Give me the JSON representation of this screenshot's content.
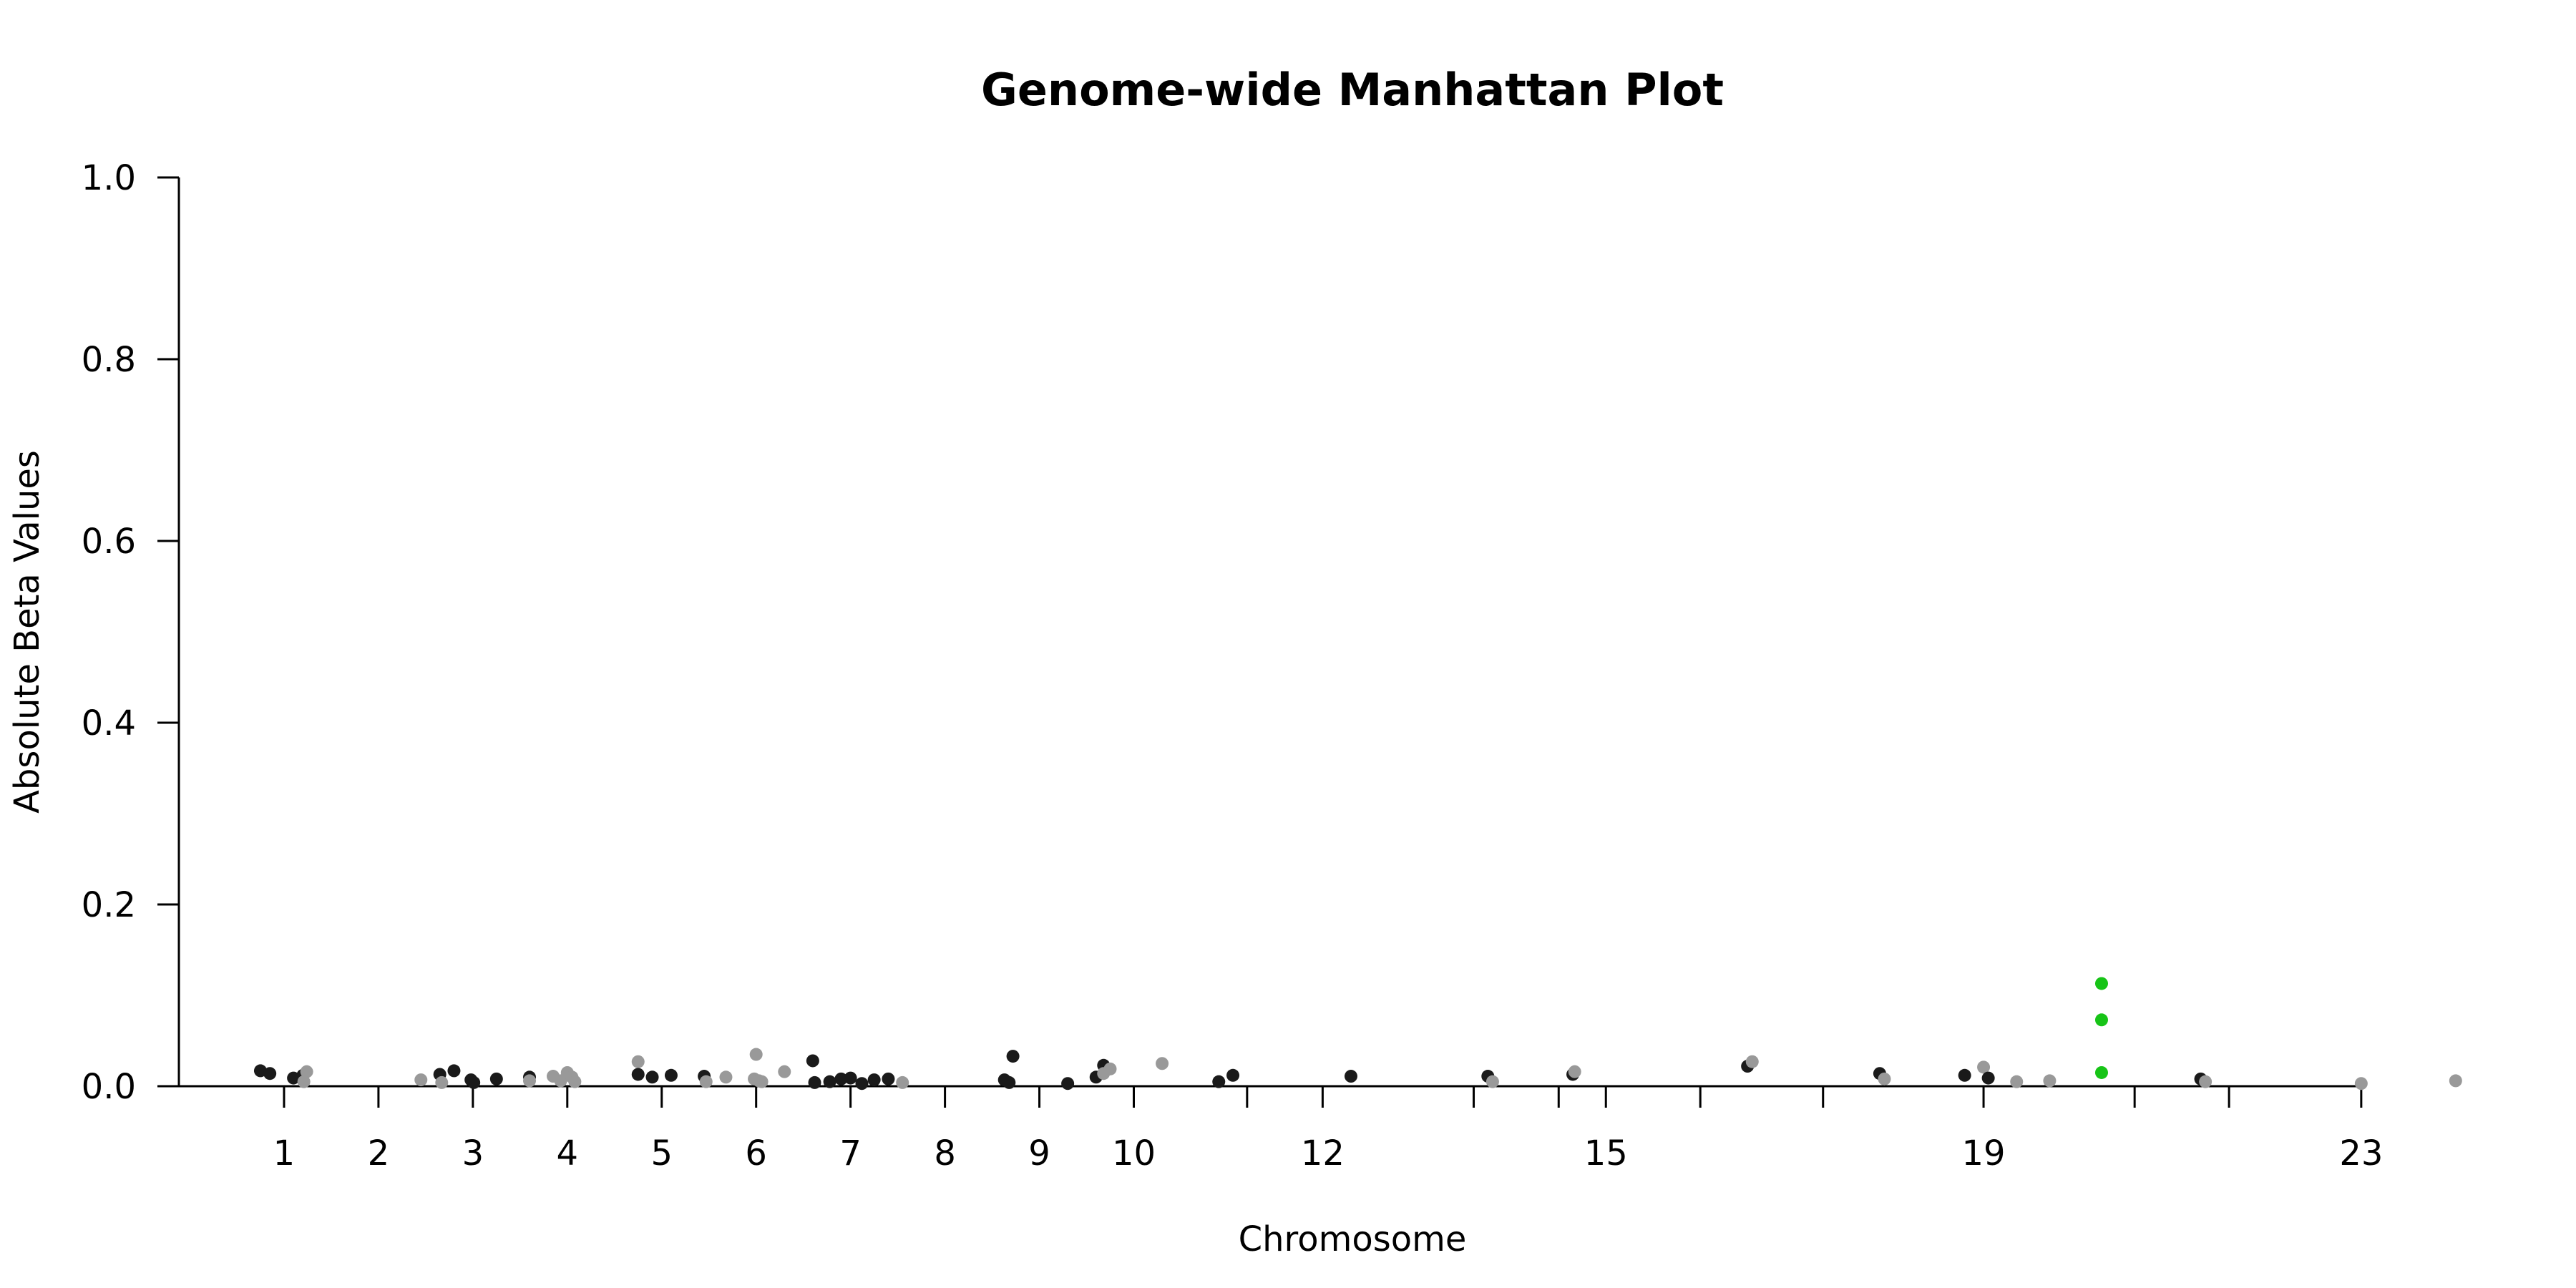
{
  "chart_data": {
    "type": "scatter",
    "title": "Genome-wide Manhattan Plot",
    "xlabel": "Chromosome",
    "ylabel": "Absolute Beta Values",
    "ylim": [
      0,
      1
    ],
    "yticks": [
      "0.0",
      "0.2",
      "0.4",
      "0.6",
      "0.8",
      "1.0"
    ],
    "grid": false,
    "legend": "none",
    "x_domain": [
      0.72,
      24.1
    ],
    "chromosome_ticks": [
      {
        "pos": 1.0,
        "label": "1"
      },
      {
        "pos": 2.0,
        "label": "2"
      },
      {
        "pos": 3.0,
        "label": "3"
      },
      {
        "pos": 4.0,
        "label": "4"
      },
      {
        "pos": 5.0,
        "label": "5"
      },
      {
        "pos": 6.0,
        "label": "6"
      },
      {
        "pos": 7.0,
        "label": "7"
      },
      {
        "pos": 8.0,
        "label": "8"
      },
      {
        "pos": 9.0,
        "label": "9"
      },
      {
        "pos": 10.0,
        "label": "10"
      },
      {
        "pos": 11.2,
        "label": ""
      },
      {
        "pos": 12.0,
        "label": "12"
      },
      {
        "pos": 13.6,
        "label": ""
      },
      {
        "pos": 14.5,
        "label": ""
      },
      {
        "pos": 15.0,
        "label": "15"
      },
      {
        "pos": 16.0,
        "label": ""
      },
      {
        "pos": 17.3,
        "label": ""
      },
      {
        "pos": 19.0,
        "label": "19"
      },
      {
        "pos": 20.6,
        "label": ""
      },
      {
        "pos": 21.6,
        "label": ""
      },
      {
        "pos": 23.0,
        "label": "23"
      }
    ],
    "colors": {
      "dark": "#1a1a1a",
      "light": "#999999",
      "highlight": "#17c417"
    },
    "points": [
      {
        "x": 0.75,
        "y": 0.017,
        "c": "dark"
      },
      {
        "x": 0.85,
        "y": 0.014,
        "c": "dark"
      },
      {
        "x": 1.1,
        "y": 0.009,
        "c": "dark"
      },
      {
        "x": 1.2,
        "y": 0.012,
        "c": "dark"
      },
      {
        "x": 1.24,
        "y": 0.016,
        "c": "light"
      },
      {
        "x": 1.21,
        "y": 0.005,
        "c": "light"
      },
      {
        "x": 2.45,
        "y": 0.007,
        "c": "light"
      },
      {
        "x": 2.65,
        "y": 0.013,
        "c": "dark"
      },
      {
        "x": 2.67,
        "y": 0.004,
        "c": "light"
      },
      {
        "x": 2.8,
        "y": 0.017,
        "c": "dark"
      },
      {
        "x": 2.98,
        "y": 0.007,
        "c": "dark"
      },
      {
        "x": 3.01,
        "y": 0.004,
        "c": "dark"
      },
      {
        "x": 3.25,
        "y": 0.008,
        "c": "dark"
      },
      {
        "x": 3.6,
        "y": 0.01,
        "c": "dark"
      },
      {
        "x": 3.6,
        "y": 0.006,
        "c": "light"
      },
      {
        "x": 3.85,
        "y": 0.011,
        "c": "light"
      },
      {
        "x": 3.93,
        "y": 0.006,
        "c": "light"
      },
      {
        "x": 4.0,
        "y": 0.015,
        "c": "light"
      },
      {
        "x": 4.05,
        "y": 0.01,
        "c": "light"
      },
      {
        "x": 4.08,
        "y": 0.005,
        "c": "light"
      },
      {
        "x": 4.75,
        "y": 0.027,
        "c": "light"
      },
      {
        "x": 4.75,
        "y": 0.013,
        "c": "dark"
      },
      {
        "x": 4.9,
        "y": 0.01,
        "c": "dark"
      },
      {
        "x": 5.1,
        "y": 0.012,
        "c": "dark"
      },
      {
        "x": 5.45,
        "y": 0.011,
        "c": "dark"
      },
      {
        "x": 5.47,
        "y": 0.005,
        "c": "light"
      },
      {
        "x": 5.68,
        "y": 0.01,
        "c": "light"
      },
      {
        "x": 5.98,
        "y": 0.008,
        "c": "light"
      },
      {
        "x": 6.0,
        "y": 0.035,
        "c": "light"
      },
      {
        "x": 6.03,
        "y": 0.006,
        "c": "light"
      },
      {
        "x": 6.06,
        "y": 0.005,
        "c": "light"
      },
      {
        "x": 6.3,
        "y": 0.016,
        "c": "light"
      },
      {
        "x": 6.6,
        "y": 0.028,
        "c": "dark"
      },
      {
        "x": 6.62,
        "y": 0.004,
        "c": "dark"
      },
      {
        "x": 6.78,
        "y": 0.005,
        "c": "dark"
      },
      {
        "x": 6.9,
        "y": 0.008,
        "c": "dark"
      },
      {
        "x": 7.0,
        "y": 0.009,
        "c": "dark"
      },
      {
        "x": 7.12,
        "y": 0.003,
        "c": "dark"
      },
      {
        "x": 7.25,
        "y": 0.007,
        "c": "dark"
      },
      {
        "x": 7.4,
        "y": 0.008,
        "c": "dark"
      },
      {
        "x": 7.55,
        "y": 0.004,
        "c": "light"
      },
      {
        "x": 8.63,
        "y": 0.007,
        "c": "dark"
      },
      {
        "x": 8.68,
        "y": 0.004,
        "c": "dark"
      },
      {
        "x": 8.72,
        "y": 0.033,
        "c": "dark"
      },
      {
        "x": 9.3,
        "y": 0.003,
        "c": "dark"
      },
      {
        "x": 9.6,
        "y": 0.01,
        "c": "dark"
      },
      {
        "x": 9.68,
        "y": 0.023,
        "c": "dark"
      },
      {
        "x": 9.68,
        "y": 0.014,
        "c": "light"
      },
      {
        "x": 9.75,
        "y": 0.019,
        "c": "light"
      },
      {
        "x": 10.3,
        "y": 0.025,
        "c": "light"
      },
      {
        "x": 10.9,
        "y": 0.005,
        "c": "dark"
      },
      {
        "x": 11.05,
        "y": 0.012,
        "c": "dark"
      },
      {
        "x": 12.3,
        "y": 0.011,
        "c": "dark"
      },
      {
        "x": 13.75,
        "y": 0.011,
        "c": "dark"
      },
      {
        "x": 13.8,
        "y": 0.005,
        "c": "light"
      },
      {
        "x": 14.65,
        "y": 0.013,
        "c": "dark"
      },
      {
        "x": 14.67,
        "y": 0.016,
        "c": "light"
      },
      {
        "x": 16.5,
        "y": 0.022,
        "c": "dark"
      },
      {
        "x": 16.55,
        "y": 0.027,
        "c": "light"
      },
      {
        "x": 17.9,
        "y": 0.014,
        "c": "dark"
      },
      {
        "x": 17.95,
        "y": 0.008,
        "c": "light"
      },
      {
        "x": 18.8,
        "y": 0.012,
        "c": "dark"
      },
      {
        "x": 19.0,
        "y": 0.021,
        "c": "light"
      },
      {
        "x": 19.05,
        "y": 0.009,
        "c": "dark"
      },
      {
        "x": 19.35,
        "y": 0.005,
        "c": "light"
      },
      {
        "x": 19.7,
        "y": 0.006,
        "c": "light"
      },
      {
        "x": 20.25,
        "y": 0.113,
        "c": "highlight"
      },
      {
        "x": 20.25,
        "y": 0.073,
        "c": "highlight"
      },
      {
        "x": 20.25,
        "y": 0.015,
        "c": "highlight"
      },
      {
        "x": 21.3,
        "y": 0.008,
        "c": "dark"
      },
      {
        "x": 21.35,
        "y": 0.005,
        "c": "light"
      },
      {
        "x": 23.0,
        "y": 0.003,
        "c": "light"
      },
      {
        "x": 24.0,
        "y": 0.006,
        "c": "light"
      }
    ]
  }
}
